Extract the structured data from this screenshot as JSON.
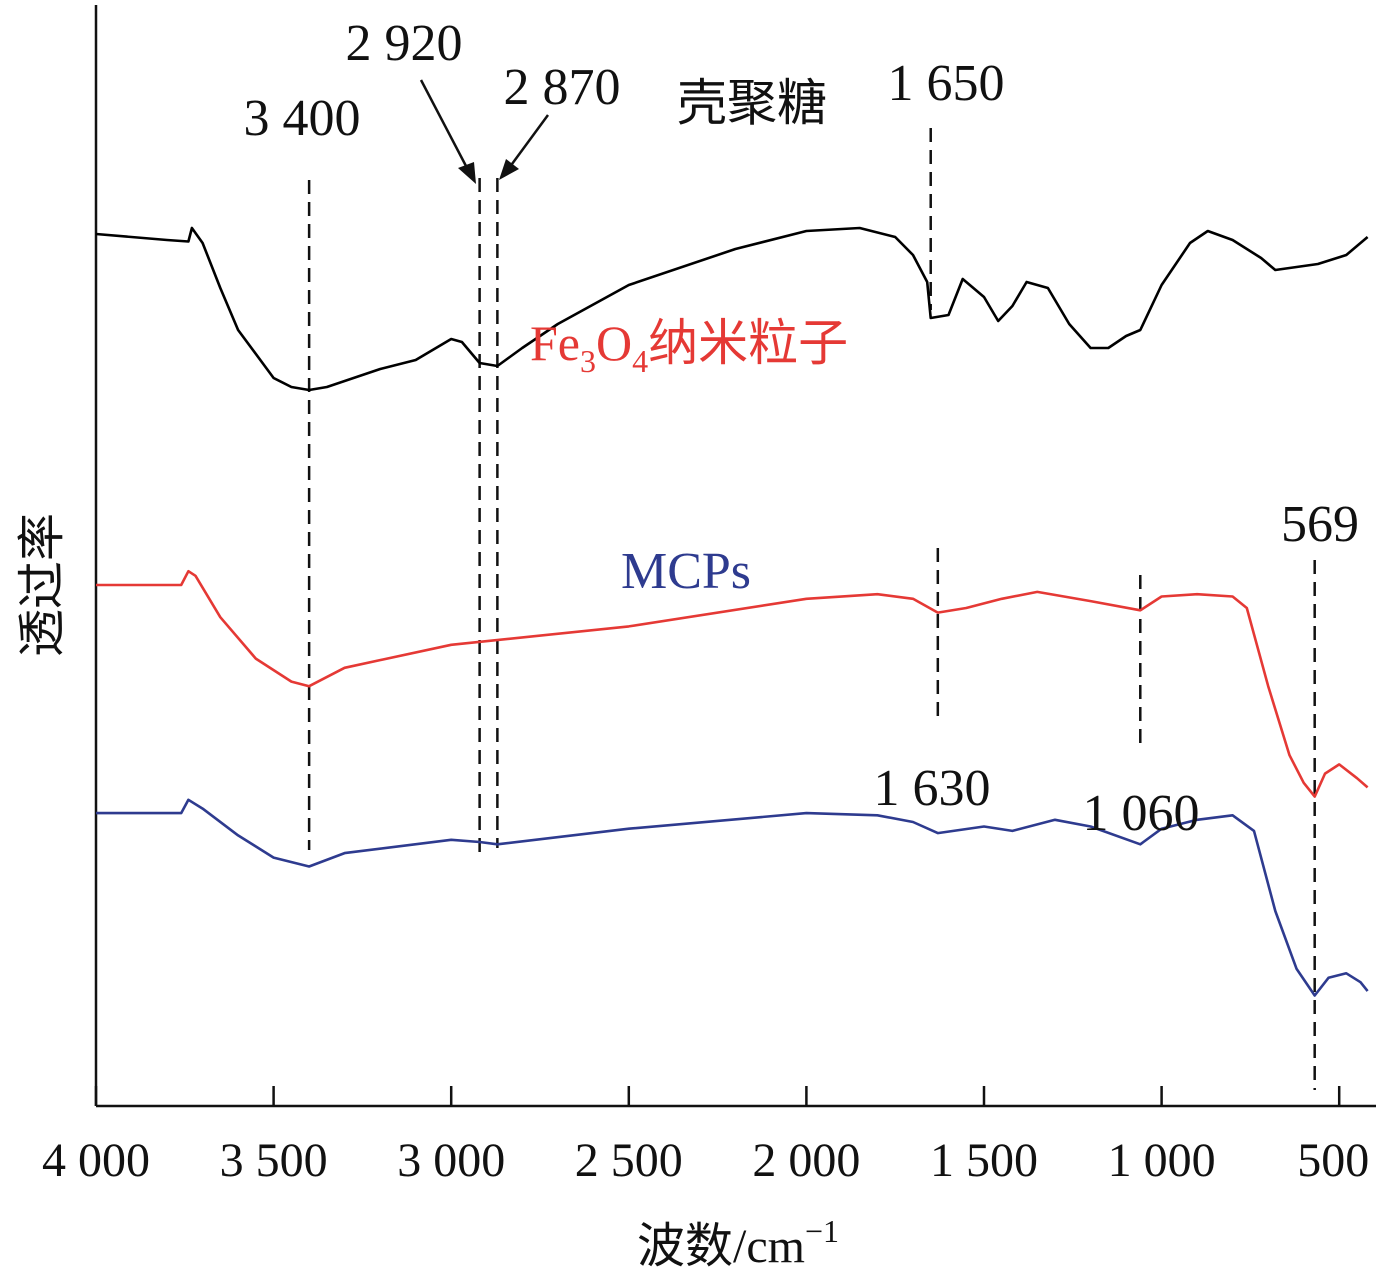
{
  "chart_data": {
    "type": "line",
    "title": "",
    "xlabel": "波数/cm",
    "xlabel_sup": "−1",
    "ylabel": "透过率",
    "xlim": [
      4000,
      400
    ],
    "x_reversed": true,
    "y_ticks_shown": false,
    "grid": false,
    "legend": "none (inline curve labels)",
    "x_ticks": [
      4000,
      3500,
      3000,
      2500,
      2000,
      1500,
      1000,
      500
    ],
    "x_tick_labels": [
      "4 000",
      "3 500",
      "3 000",
      "2 500",
      "2 000",
      "1 500",
      "1 000",
      "500"
    ],
    "series": [
      {
        "name": "壳聚糖",
        "color": "#000000",
        "points": [
          [
            4000,
            0.62
          ],
          [
            3800,
            0.6
          ],
          [
            3740,
            0.595
          ],
          [
            3730,
            0.64
          ],
          [
            3700,
            0.59
          ],
          [
            3650,
            0.44
          ],
          [
            3600,
            0.3
          ],
          [
            3500,
            0.14
          ],
          [
            3450,
            0.11
          ],
          [
            3400,
            0.1
          ],
          [
            3350,
            0.11
          ],
          [
            3200,
            0.17
          ],
          [
            3100,
            0.2
          ],
          [
            3000,
            0.27
          ],
          [
            2970,
            0.26
          ],
          [
            2920,
            0.19
          ],
          [
            2870,
            0.18
          ],
          [
            2800,
            0.24
          ],
          [
            2700,
            0.32
          ],
          [
            2500,
            0.45
          ],
          [
            2200,
            0.57
          ],
          [
            2000,
            0.63
          ],
          [
            1850,
            0.64
          ],
          [
            1750,
            0.61
          ],
          [
            1700,
            0.55
          ],
          [
            1660,
            0.46
          ],
          [
            1650,
            0.34
          ],
          [
            1600,
            0.35
          ],
          [
            1560,
            0.47
          ],
          [
            1500,
            0.41
          ],
          [
            1460,
            0.33
          ],
          [
            1420,
            0.38
          ],
          [
            1380,
            0.46
          ],
          [
            1320,
            0.44
          ],
          [
            1260,
            0.32
          ],
          [
            1200,
            0.24
          ],
          [
            1150,
            0.24
          ],
          [
            1100,
            0.28
          ],
          [
            1060,
            0.3
          ],
          [
            1000,
            0.45
          ],
          [
            920,
            0.59
          ],
          [
            870,
            0.63
          ],
          [
            800,
            0.6
          ],
          [
            720,
            0.54
          ],
          [
            680,
            0.5
          ],
          [
            620,
            0.51
          ],
          [
            560,
            0.52
          ],
          [
            480,
            0.55
          ],
          [
            420,
            0.61
          ]
        ]
      },
      {
        "name": "Fe3O4纳米粒子",
        "color": "#e53935",
        "points": [
          [
            4000,
            0.5
          ],
          [
            3760,
            0.5
          ],
          [
            3740,
            0.53
          ],
          [
            3720,
            0.52
          ],
          [
            3650,
            0.43
          ],
          [
            3550,
            0.34
          ],
          [
            3450,
            0.29
          ],
          [
            3400,
            0.28
          ],
          [
            3300,
            0.32
          ],
          [
            3000,
            0.37
          ],
          [
            2500,
            0.41
          ],
          [
            2000,
            0.47
          ],
          [
            1800,
            0.48
          ],
          [
            1700,
            0.47
          ],
          [
            1630,
            0.44
          ],
          [
            1550,
            0.45
          ],
          [
            1450,
            0.47
          ],
          [
            1350,
            0.485
          ],
          [
            1200,
            0.465
          ],
          [
            1060,
            0.445
          ],
          [
            1000,
            0.475
          ],
          [
            900,
            0.48
          ],
          [
            800,
            0.475
          ],
          [
            760,
            0.45
          ],
          [
            700,
            0.28
          ],
          [
            640,
            0.13
          ],
          [
            600,
            0.07
          ],
          [
            569,
            0.04
          ],
          [
            540,
            0.09
          ],
          [
            500,
            0.11
          ],
          [
            450,
            0.08
          ],
          [
            420,
            0.06
          ]
        ]
      },
      {
        "name": "MCPs",
        "color": "#2e3b8f",
        "points": [
          [
            4000,
            0.42
          ],
          [
            3760,
            0.42
          ],
          [
            3740,
            0.45
          ],
          [
            3700,
            0.43
          ],
          [
            3600,
            0.37
          ],
          [
            3500,
            0.32
          ],
          [
            3400,
            0.3
          ],
          [
            3300,
            0.33
          ],
          [
            3000,
            0.36
          ],
          [
            2920,
            0.355
          ],
          [
            2870,
            0.35
          ],
          [
            2500,
            0.385
          ],
          [
            2000,
            0.42
          ],
          [
            1800,
            0.415
          ],
          [
            1700,
            0.4
          ],
          [
            1630,
            0.375
          ],
          [
            1500,
            0.39
          ],
          [
            1420,
            0.38
          ],
          [
            1300,
            0.405
          ],
          [
            1200,
            0.39
          ],
          [
            1060,
            0.35
          ],
          [
            1000,
            0.385
          ],
          [
            900,
            0.405
          ],
          [
            800,
            0.415
          ],
          [
            740,
            0.38
          ],
          [
            680,
            0.2
          ],
          [
            620,
            0.07
          ],
          [
            569,
            0.01
          ],
          [
            530,
            0.05
          ],
          [
            480,
            0.06
          ],
          [
            440,
            0.04
          ],
          [
            420,
            0.02
          ]
        ]
      }
    ],
    "peak_labels": [
      {
        "text": "3 400",
        "wavenumber": 3400
      },
      {
        "text": "2 920",
        "wavenumber": 2920
      },
      {
        "text": "2 870",
        "wavenumber": 2870
      },
      {
        "text": "1 650",
        "wavenumber": 1650
      },
      {
        "text": "1 630",
        "wavenumber": 1630
      },
      {
        "text": "1 060",
        "wavenumber": 1060
      },
      {
        "text": "569",
        "wavenumber": 569
      }
    ],
    "curve_labels": {
      "chitosan": "壳聚糖",
      "fe3o4": {
        "base": "Fe",
        "sub1": "3",
        "mid": "O",
        "sub2": "4",
        "rest": "纳米粒子"
      },
      "mcps": "MCPs"
    }
  }
}
